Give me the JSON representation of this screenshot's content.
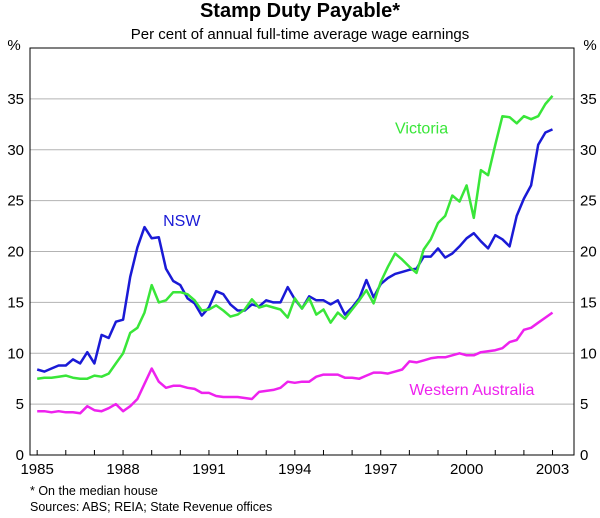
{
  "chart_data": {
    "type": "line",
    "title": "Stamp Duty Payable*",
    "subtitle": "Per cent of annual full-time average wage earnings",
    "ylabel_left": "%",
    "ylabel_right": "%",
    "ylim": [
      0,
      40
    ],
    "yticks": [
      0,
      5,
      10,
      15,
      20,
      25,
      30,
      35
    ],
    "xlim": [
      1984.75,
      2003.75
    ],
    "xticks": [
      "1985",
      "1988",
      "1991",
      "1994",
      "1997",
      "2000",
      "2003"
    ],
    "grid": true,
    "series": [
      {
        "name": "NSW",
        "color": "#1a1ad6",
        "x": [
          1985.0,
          1985.25,
          1985.5,
          1985.75,
          1986.0,
          1986.25,
          1986.5,
          1986.75,
          1987.0,
          1987.25,
          1987.5,
          1987.75,
          1988.0,
          1988.25,
          1988.5,
          1988.75,
          1989.0,
          1989.25,
          1989.5,
          1989.75,
          1990.0,
          1990.25,
          1990.5,
          1990.75,
          1991.0,
          1991.25,
          1991.5,
          1991.75,
          1992.0,
          1992.25,
          1992.5,
          1992.75,
          1993.0,
          1993.25,
          1993.5,
          1993.75,
          1994.0,
          1994.25,
          1994.5,
          1994.75,
          1995.0,
          1995.25,
          1995.5,
          1995.75,
          1996.0,
          1996.25,
          1996.5,
          1996.75,
          1997.0,
          1997.25,
          1997.5,
          1997.75,
          1998.0,
          1998.25,
          1998.5,
          1998.75,
          1999.0,
          1999.25,
          1999.5,
          1999.75,
          2000.0,
          2000.25,
          2000.5,
          2000.75,
          2001.0,
          2001.25,
          2001.5,
          2001.75,
          2002.0,
          2002.25,
          2002.5,
          2002.75,
          2003.0
        ],
        "values": [
          8.4,
          8.2,
          8.5,
          8.8,
          8.8,
          9.4,
          9.0,
          10.1,
          9.0,
          11.8,
          11.5,
          13.1,
          13.3,
          17.5,
          20.4,
          22.4,
          21.3,
          21.4,
          18.3,
          17.1,
          16.7,
          15.4,
          14.9,
          13.7,
          14.5,
          16.1,
          15.8,
          14.8,
          14.2,
          14.2,
          14.8,
          14.6,
          15.2,
          15.0,
          15.0,
          16.5,
          15.3,
          14.4,
          15.6,
          15.2,
          15.2,
          14.8,
          15.2,
          13.8,
          14.5,
          15.4,
          17.2,
          15.5,
          16.8,
          17.4,
          17.8,
          18.0,
          18.2,
          18.3,
          19.5,
          19.5,
          20.3,
          19.4,
          19.8,
          20.5,
          21.3,
          21.8,
          21.0,
          20.3,
          21.6,
          21.2,
          20.5,
          23.5,
          25.2,
          26.5,
          30.5,
          31.7,
          32.0
        ]
      },
      {
        "name": "Victoria",
        "color": "#39e639",
        "x": [
          1985.0,
          1985.25,
          1985.5,
          1985.75,
          1986.0,
          1986.25,
          1986.5,
          1986.75,
          1987.0,
          1987.25,
          1987.5,
          1987.75,
          1988.0,
          1988.25,
          1988.5,
          1988.75,
          1989.0,
          1989.25,
          1989.5,
          1989.75,
          1990.0,
          1990.25,
          1990.5,
          1990.75,
          1991.0,
          1991.25,
          1991.5,
          1991.75,
          1992.0,
          1992.25,
          1992.5,
          1992.75,
          1993.0,
          1993.25,
          1993.5,
          1993.75,
          1994.0,
          1994.25,
          1994.5,
          1994.75,
          1995.0,
          1995.25,
          1995.5,
          1995.75,
          1996.0,
          1996.25,
          1996.5,
          1996.75,
          1997.0,
          1997.25,
          1997.5,
          1997.75,
          1998.0,
          1998.25,
          1998.5,
          1998.75,
          1999.0,
          1999.25,
          1999.5,
          1999.75,
          2000.0,
          2000.25,
          2000.5,
          2000.75,
          2001.0,
          2001.25,
          2001.5,
          2001.75,
          2002.0,
          2002.25,
          2002.5,
          2002.75,
          2003.0
        ],
        "values": [
          7.5,
          7.6,
          7.6,
          7.7,
          7.8,
          7.6,
          7.5,
          7.5,
          7.8,
          7.7,
          8.0,
          9.0,
          10.0,
          12.0,
          12.5,
          14.0,
          16.7,
          15.0,
          15.2,
          16.0,
          16.0,
          15.8,
          15.2,
          14.2,
          14.3,
          14.7,
          14.2,
          13.6,
          13.8,
          14.3,
          15.3,
          14.5,
          14.7,
          14.5,
          14.3,
          13.5,
          15.4,
          14.4,
          15.4,
          13.8,
          14.3,
          13.0,
          14.0,
          13.4,
          14.3,
          15.2,
          16.2,
          14.9,
          17.0,
          18.5,
          19.8,
          19.2,
          18.5,
          17.9,
          20.2,
          21.2,
          22.8,
          23.5,
          25.5,
          24.9,
          26.5,
          23.3,
          28.0,
          27.5,
          30.5,
          33.3,
          33.2,
          32.6,
          33.3,
          33.0,
          33.3,
          34.5,
          35.3
        ]
      },
      {
        "name": "Western Australia",
        "color": "#ee22ee",
        "x": [
          1985.0,
          1985.25,
          1985.5,
          1985.75,
          1986.0,
          1986.25,
          1986.5,
          1986.75,
          1987.0,
          1987.25,
          1987.5,
          1987.75,
          1988.0,
          1988.25,
          1988.5,
          1988.75,
          1989.0,
          1989.25,
          1989.5,
          1989.75,
          1990.0,
          1990.25,
          1990.5,
          1990.75,
          1991.0,
          1991.25,
          1991.5,
          1991.75,
          1992.0,
          1992.25,
          1992.5,
          1992.75,
          1993.0,
          1993.25,
          1993.5,
          1993.75,
          1994.0,
          1994.25,
          1994.5,
          1994.75,
          1995.0,
          1995.25,
          1995.5,
          1995.75,
          1996.0,
          1996.25,
          1996.5,
          1996.75,
          1997.0,
          1997.25,
          1997.5,
          1997.75,
          1998.0,
          1998.25,
          1998.5,
          1998.75,
          1999.0,
          1999.25,
          1999.5,
          1999.75,
          2000.0,
          2000.25,
          2000.5,
          2000.75,
          2001.0,
          2001.25,
          2001.5,
          2001.75,
          2002.0,
          2002.25,
          2002.5,
          2002.75,
          2003.0
        ],
        "values": [
          4.3,
          4.3,
          4.2,
          4.3,
          4.2,
          4.2,
          4.1,
          4.8,
          4.4,
          4.3,
          4.6,
          5.0,
          4.3,
          4.8,
          5.5,
          7.0,
          8.5,
          7.2,
          6.6,
          6.8,
          6.8,
          6.6,
          6.5,
          6.1,
          6.1,
          5.8,
          5.7,
          5.7,
          5.7,
          5.6,
          5.5,
          6.2,
          6.3,
          6.4,
          6.6,
          7.2,
          7.1,
          7.2,
          7.2,
          7.7,
          7.9,
          7.9,
          7.9,
          7.6,
          7.6,
          7.5,
          7.8,
          8.1,
          8.1,
          8.0,
          8.2,
          8.4,
          9.2,
          9.1,
          9.3,
          9.5,
          9.6,
          9.6,
          9.8,
          10.0,
          9.8,
          9.8,
          10.1,
          10.2,
          10.3,
          10.5,
          11.1,
          11.3,
          12.3,
          12.5,
          13.0,
          13.5,
          14.0
        ]
      }
    ],
    "series_labels": [
      {
        "text": "NSW",
        "x": 1989.4,
        "y": 22.5
      },
      {
        "text": "Victoria",
        "x": 1997.5,
        "y": 31.6
      },
      {
        "text": "Western Australia",
        "x": 1998.0,
        "y": 5.9
      }
    ]
  },
  "footnotes": {
    "note": "*   On the median house",
    "sources": "Sources: ABS; REIA; State Revenue offices"
  }
}
